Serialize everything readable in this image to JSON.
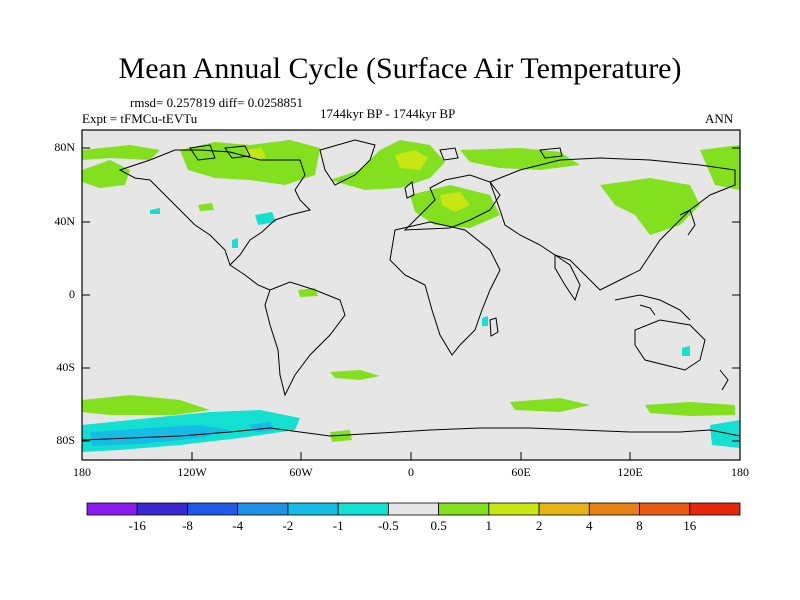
{
  "title": "Mean Annual Cycle (Surface Air Temperature)",
  "stats": "rmsd= 0.257819 diff= 0.0258851",
  "expt": "Expt = tFMCu-tEVTu",
  "period": "1744kyr BP - 1744kyr BP",
  "season": "ANN",
  "lat_labels": [
    "80N",
    "40N",
    "0",
    "40S",
    "80S"
  ],
  "lon_labels": [
    "180",
    "120W",
    "60W",
    "0",
    "60E",
    "120E",
    "180"
  ],
  "colorbar": {
    "labels": [
      "-16",
      "-8",
      "-4",
      "-2",
      "-1",
      "-0.5",
      "0.5",
      "1",
      "2",
      "4",
      "8",
      "16"
    ],
    "colors": [
      "#8a1cf0",
      "#3a28d0",
      "#1e5ae6",
      "#1e90e6",
      "#14bce6",
      "#14e0d2",
      "#e6e6e6",
      "#82e01e",
      "#c8e614",
      "#e6b414",
      "#e68214",
      "#e65a14",
      "#e6280a"
    ]
  }
}
